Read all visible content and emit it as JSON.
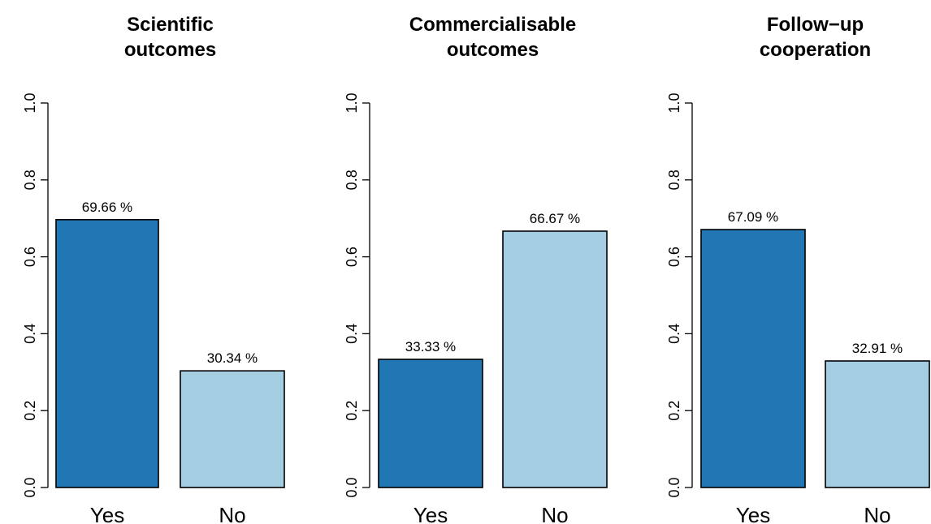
{
  "chart_data": [
    {
      "type": "bar",
      "title": [
        "Scientific",
        "outcomes"
      ],
      "categories": [
        "Yes",
        "No"
      ],
      "values": [
        0.6966,
        0.3034
      ],
      "data_labels": [
        "69.66 %",
        "30.34 %"
      ],
      "colors": [
        "#2077b4",
        "#a6cee3"
      ],
      "ylim": [
        0,
        1
      ],
      "yticks": [
        "0.0",
        "0.2",
        "0.4",
        "0.6",
        "0.8",
        "1.0"
      ]
    },
    {
      "type": "bar",
      "title": [
        "Commercialisable",
        "outcomes"
      ],
      "categories": [
        "Yes",
        "No"
      ],
      "values": [
        0.3333,
        0.6667
      ],
      "data_labels": [
        "33.33 %",
        "66.67 %"
      ],
      "colors": [
        "#2077b4",
        "#a6cee3"
      ],
      "ylim": [
        0,
        1
      ],
      "yticks": [
        "0.0",
        "0.2",
        "0.4",
        "0.6",
        "0.8",
        "1.0"
      ]
    },
    {
      "type": "bar",
      "title": [
        "Follow−up",
        "cooperation"
      ],
      "categories": [
        "Yes",
        "No"
      ],
      "values": [
        0.6709,
        0.3291
      ],
      "data_labels": [
        "67.09 %",
        "32.91 %"
      ],
      "colors": [
        "#2077b4",
        "#a6cee3"
      ],
      "ylim": [
        0,
        1
      ],
      "yticks": [
        "0.0",
        "0.2",
        "0.4",
        "0.6",
        "0.8",
        "1.0"
      ]
    }
  ]
}
